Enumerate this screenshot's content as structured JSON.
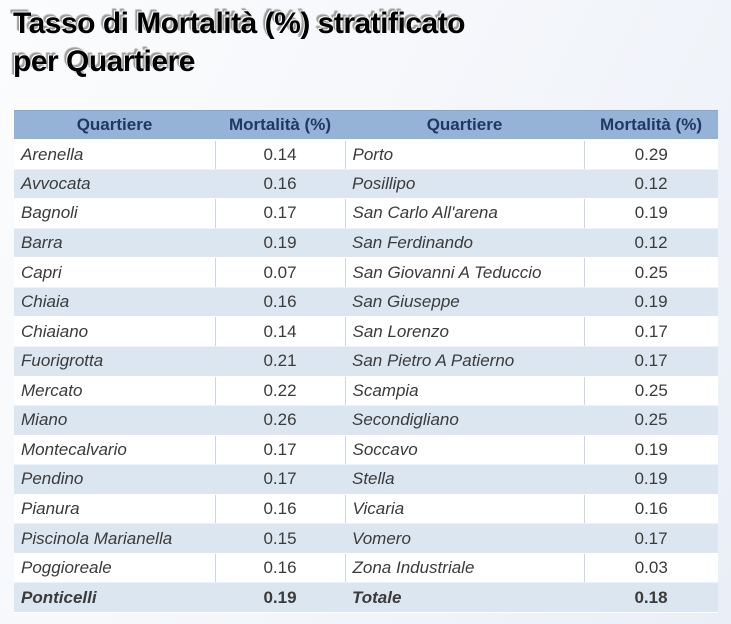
{
  "title": {
    "line1": "Tasso di Mortalità (%) stratificato",
    "line2": "per Quartiere"
  },
  "table": {
    "headers": [
      "Quartiere",
      "Mortalità (%)",
      "Quartiere",
      "Mortalità (%)"
    ],
    "rows": [
      {
        "q1": "Arenella",
        "v1": "0.14",
        "q2": "Porto",
        "v2": "0.29"
      },
      {
        "q1": "Avvocata",
        "v1": "0.16",
        "q2": "Posillipo",
        "v2": "0.12"
      },
      {
        "q1": "Bagnoli",
        "v1": "0.17",
        "q2": "San Carlo All'arena",
        "v2": "0.19"
      },
      {
        "q1": "Barra",
        "v1": "0.19",
        "q2": "San Ferdinando",
        "v2": "0.12"
      },
      {
        "q1": "Capri",
        "v1": "0.07",
        "q2": "San Giovanni A Teduccio",
        "v2": "0.25"
      },
      {
        "q1": "Chiaia",
        "v1": "0.16",
        "q2": "San Giuseppe",
        "v2": "0.19"
      },
      {
        "q1": "Chiaiano",
        "v1": "0.14",
        "q2": "San Lorenzo",
        "v2": "0.17"
      },
      {
        "q1": "Fuorigrotta",
        "v1": "0.21",
        "q2": "San Pietro A Patierno",
        "v2": "0.17"
      },
      {
        "q1": "Mercato",
        "v1": "0.22",
        "q2": "Scampia",
        "v2": "0.25"
      },
      {
        "q1": "Miano",
        "v1": "0.26",
        "q2": "Secondigliano",
        "v2": "0.25"
      },
      {
        "q1": "Montecalvario",
        "v1": "0.17",
        "q2": "Soccavo",
        "v2": "0.19"
      },
      {
        "q1": "Pendino",
        "v1": "0.17",
        "q2": "Stella",
        "v2": "0.19"
      },
      {
        "q1": "Pianura",
        "v1": "0.16",
        "q2": "Vicaria",
        "v2": "0.16"
      },
      {
        "q1": "Piscinola Marianella",
        "v1": "0.15",
        "q2": "Vomero",
        "v2": "0.17"
      },
      {
        "q1": "Poggioreale",
        "v1": "0.16",
        "q2": "Zona Industriale",
        "v2": "0.03"
      },
      {
        "q1": "Ponticelli",
        "v1": "0.19",
        "q2": "Totale",
        "v2": "0.18",
        "is_total": true
      }
    ]
  },
  "colors": {
    "header_bg": "#95B3D7",
    "header_text": "#1F3864",
    "band_bg": "#DCE6F1",
    "body_text": "#3B3B3B",
    "title_text": "#000000"
  }
}
